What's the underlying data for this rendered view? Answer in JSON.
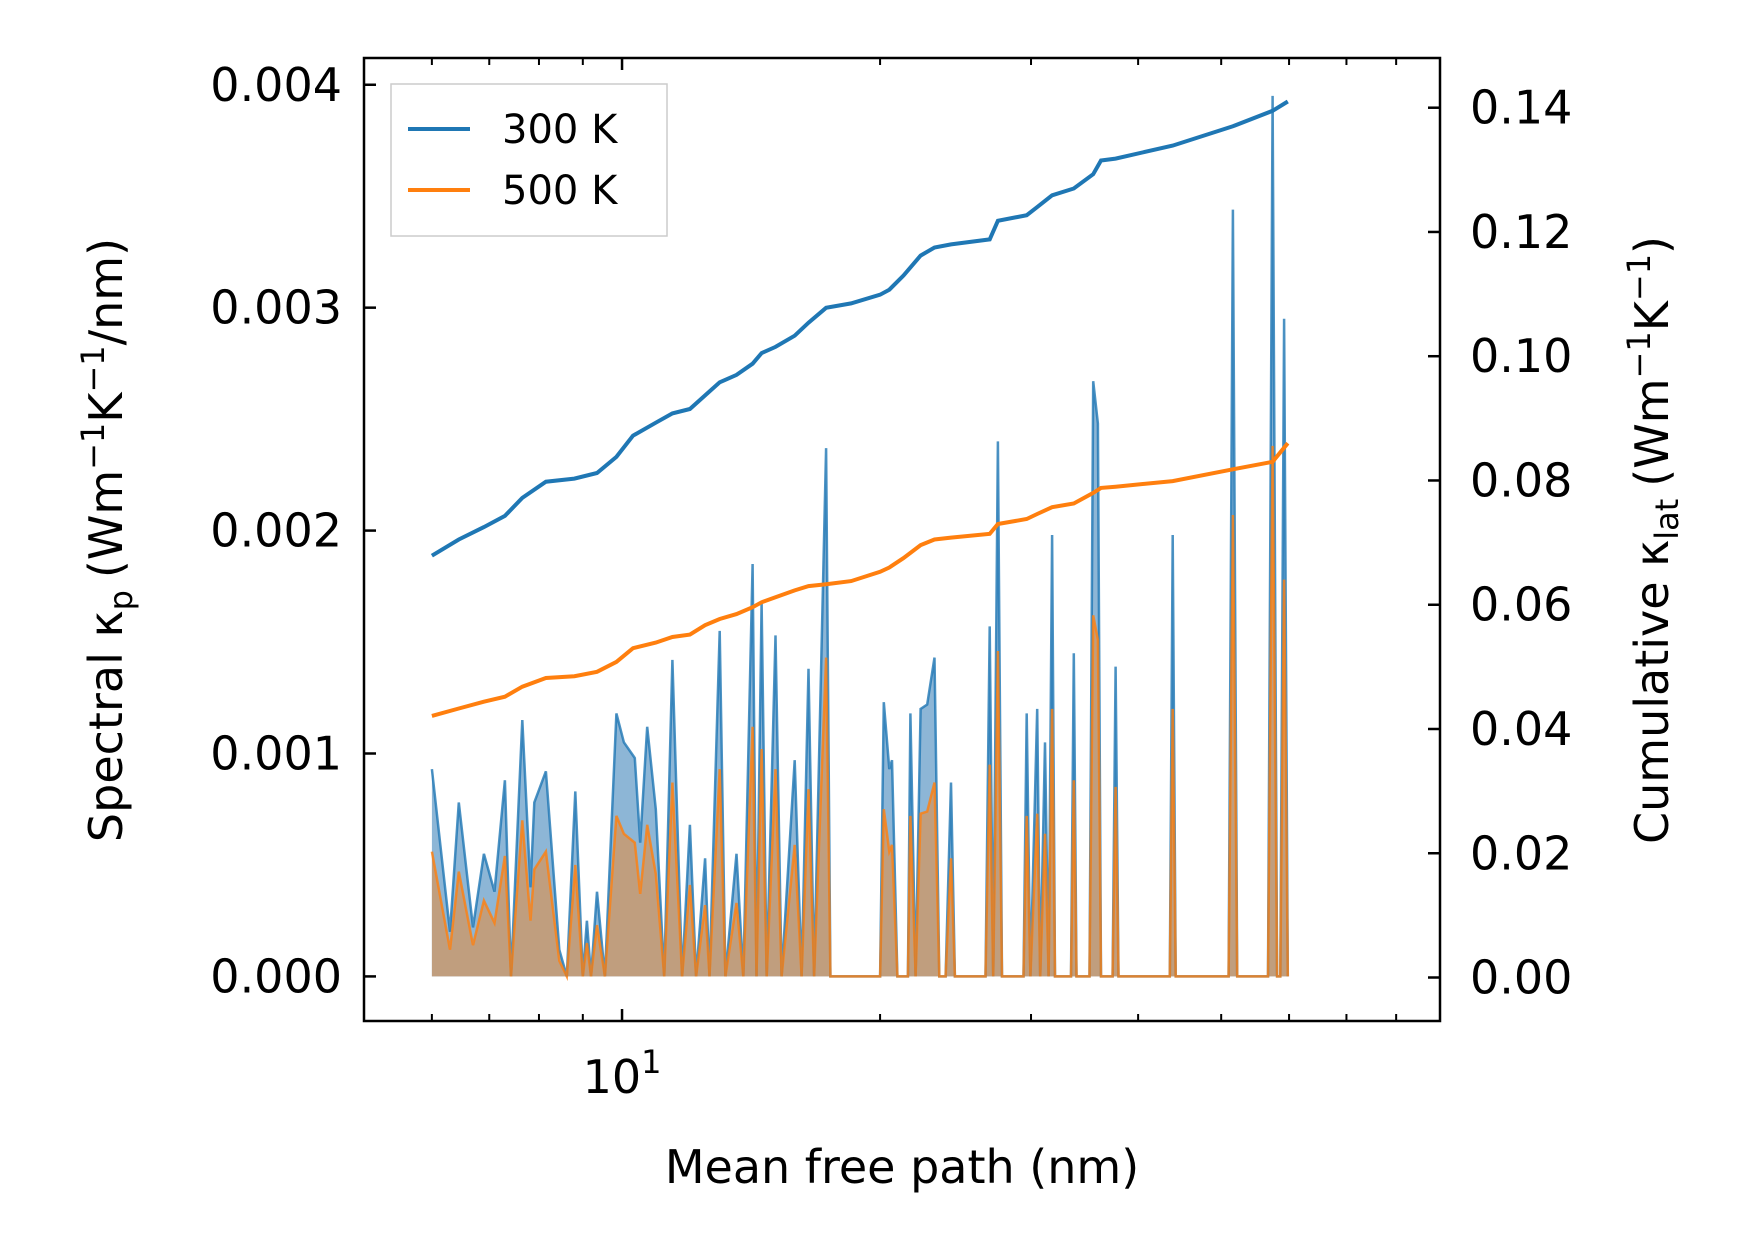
{
  "chart_data": {
    "type": "line",
    "x_scale": "log",
    "xlim": [
      5.0,
      90.0
    ],
    "xlabel": "Mean free path (nm)",
    "x_major_ticks": [
      {
        "value": 10,
        "base": "10",
        "exponent": "1"
      }
    ],
    "left_axis": {
      "label_prefix": "Spectral κ",
      "label_sub": "p",
      "label_units": [
        "(Wm",
        "−1",
        "K",
        "−1",
        "/nm)"
      ],
      "ylim": [
        -0.0002,
        0.00412
      ],
      "ticks": [
        0.0,
        0.001,
        0.002,
        0.003,
        0.004
      ],
      "tick_labels": [
        "0.000",
        "0.001",
        "0.002",
        "0.003",
        "0.004"
      ]
    },
    "right_axis": {
      "label_prefix": "Cumulative κ",
      "label_sub": "lat",
      "label_units": [
        "(Wm",
        "−1",
        "K",
        "−1",
        ")"
      ],
      "ylim": [
        -0.007,
        0.148
      ],
      "ticks": [
        0.0,
        0.02,
        0.04,
        0.06,
        0.08,
        0.1,
        0.12,
        0.14
      ],
      "tick_labels": [
        "0.00",
        "0.02",
        "0.04",
        "0.06",
        "0.08",
        "0.10",
        "0.12",
        "0.14"
      ]
    },
    "legend": {
      "placement": "top-left",
      "entries": [
        "300 K",
        "500 K"
      ]
    },
    "series": [
      {
        "name": "300 K",
        "color": "#1f77b4",
        "fill": "#79a9cf",
        "spectral": [
          [
            6.0,
            0.00093
          ],
          [
            6.3,
            0.0002
          ],
          [
            6.45,
            0.00078
          ],
          [
            6.7,
            0.00022
          ],
          [
            6.9,
            0.00055
          ],
          [
            7.1,
            0.00038
          ],
          [
            7.3,
            0.00088
          ],
          [
            7.42,
            0.0
          ],
          [
            7.5,
            0.0004
          ],
          [
            7.65,
            0.00115
          ],
          [
            7.82,
            0.0004
          ],
          [
            7.9,
            0.00078
          ],
          [
            8.15,
            0.00092
          ],
          [
            8.45,
            0.00012
          ],
          [
            8.62,
            0.0
          ],
          [
            8.82,
            0.00083
          ],
          [
            9.0,
            0.0
          ],
          [
            9.1,
            0.00025
          ],
          [
            9.2,
            0.0
          ],
          [
            9.35,
            0.00038
          ],
          [
            9.55,
            0.0
          ],
          [
            9.85,
            0.00118
          ],
          [
            10.05,
            0.00105
          ],
          [
            10.35,
            0.00098
          ],
          [
            10.5,
            0.0006
          ],
          [
            10.7,
            0.00112
          ],
          [
            10.95,
            0.00075
          ],
          [
            11.2,
            0.0
          ],
          [
            11.45,
            0.00142
          ],
          [
            11.75,
            0.0
          ],
          [
            12.0,
            0.00068
          ],
          [
            12.2,
            0.0
          ],
          [
            12.5,
            0.00053
          ],
          [
            12.65,
            0.0
          ],
          [
            13.0,
            0.00155
          ],
          [
            13.2,
            0.0
          ],
          [
            13.6,
            0.00055
          ],
          [
            13.85,
            0.0
          ],
          [
            14.2,
            0.00185
          ],
          [
            14.35,
            0.0
          ],
          [
            14.55,
            0.00168
          ],
          [
            14.75,
            0.0
          ],
          [
            15.1,
            0.00153
          ],
          [
            15.35,
            0.0
          ],
          [
            15.9,
            0.00097
          ],
          [
            16.2,
            0.0
          ],
          [
            16.5,
            0.00138
          ],
          [
            16.75,
            0.0
          ],
          [
            17.3,
            0.00237
          ],
          [
            17.5,
            0.0
          ],
          [
            20.0,
            0.0
          ],
          [
            20.2,
            0.00123
          ],
          [
            20.5,
            0.00093
          ],
          [
            20.65,
            0.00097
          ],
          [
            20.95,
            0.0
          ],
          [
            21.55,
            0.0
          ],
          [
            21.7,
            0.00118
          ],
          [
            22.0,
            0.0
          ],
          [
            22.3,
            0.0012
          ],
          [
            22.7,
            0.00122
          ],
          [
            23.15,
            0.00143
          ],
          [
            23.45,
            0.0
          ],
          [
            23.85,
            0.0
          ],
          [
            24.2,
            0.00087
          ],
          [
            24.45,
            0.0
          ],
          [
            26.55,
            0.0
          ],
          [
            26.85,
            0.00157
          ],
          [
            27.1,
            0.0
          ],
          [
            27.45,
            0.0024
          ],
          [
            27.75,
            0.0
          ],
          [
            29.4,
            0.0
          ],
          [
            29.65,
            0.00118
          ],
          [
            29.95,
            0.0
          ],
          [
            30.5,
            0.0012
          ],
          [
            30.75,
            0.0
          ],
          [
            31.15,
            0.00105
          ],
          [
            31.45,
            0.0
          ],
          [
            31.75,
            0.00198
          ],
          [
            32.0,
            0.0
          ],
          [
            33.4,
            0.0
          ],
          [
            33.65,
            0.00145
          ],
          [
            33.9,
            0.0
          ],
          [
            35.1,
            0.0
          ],
          [
            35.45,
            0.00267
          ],
          [
            35.9,
            0.00248
          ],
          [
            36.2,
            0.0
          ],
          [
            37.35,
            0.0
          ],
          [
            37.65,
            0.00139
          ],
          [
            37.95,
            0.0
          ],
          [
            43.55,
            0.0
          ],
          [
            43.9,
            0.00198
          ],
          [
            44.25,
            0.0
          ],
          [
            51.0,
            0.0
          ],
          [
            51.6,
            0.00344
          ],
          [
            52.2,
            0.0
          ],
          [
            56.7,
            0.0
          ],
          [
            57.4,
            0.00395
          ],
          [
            58.1,
            0.0
          ],
          [
            58.6,
            0.0
          ],
          [
            59.2,
            0.00295
          ],
          [
            59.8,
            0.0
          ]
        ],
        "cumulative": [
          [
            6.0,
            0.0679
          ],
          [
            6.45,
            0.0705
          ],
          [
            6.9,
            0.0725
          ],
          [
            7.3,
            0.0743
          ],
          [
            7.65,
            0.0772
          ],
          [
            8.15,
            0.0798
          ],
          [
            8.8,
            0.0803
          ],
          [
            9.35,
            0.0812
          ],
          [
            9.85,
            0.0838
          ],
          [
            10.3,
            0.0872
          ],
          [
            10.95,
            0.0893
          ],
          [
            11.45,
            0.0908
          ],
          [
            12.0,
            0.0915
          ],
          [
            12.5,
            0.0937
          ],
          [
            13.0,
            0.0958
          ],
          [
            13.6,
            0.097
          ],
          [
            14.2,
            0.0988
          ],
          [
            14.55,
            0.1005
          ],
          [
            15.1,
            0.1015
          ],
          [
            15.9,
            0.1033
          ],
          [
            16.5,
            0.1054
          ],
          [
            17.3,
            0.1078
          ],
          [
            18.5,
            0.1085
          ],
          [
            20.0,
            0.1099
          ],
          [
            20.5,
            0.1107
          ],
          [
            21.3,
            0.113
          ],
          [
            22.3,
            0.1162
          ],
          [
            23.15,
            0.1175
          ],
          [
            24.2,
            0.118
          ],
          [
            26.85,
            0.1188
          ],
          [
            27.45,
            0.1218
          ],
          [
            29.65,
            0.1227
          ],
          [
            30.5,
            0.124
          ],
          [
            31.75,
            0.1259
          ],
          [
            33.65,
            0.127
          ],
          [
            35.45,
            0.1293
          ],
          [
            36.2,
            0.1315
          ],
          [
            37.65,
            0.1318
          ],
          [
            43.9,
            0.1339
          ],
          [
            51.6,
            0.137
          ],
          [
            57.4,
            0.1395
          ],
          [
            59.8,
            0.141
          ]
        ]
      },
      {
        "name": "500 K",
        "color": "#ff7f0e",
        "fill": "#c99a6e",
        "spectral": [
          [
            6.0,
            0.00056
          ],
          [
            6.3,
            0.00012
          ],
          [
            6.45,
            0.00047
          ],
          [
            6.7,
            0.00014
          ],
          [
            6.9,
            0.00034
          ],
          [
            7.1,
            0.00024
          ],
          [
            7.3,
            0.00054
          ],
          [
            7.42,
            0.0
          ],
          [
            7.5,
            0.00025
          ],
          [
            7.65,
            0.0007
          ],
          [
            7.82,
            0.00025
          ],
          [
            7.9,
            0.00048
          ],
          [
            8.15,
            0.00056
          ],
          [
            8.45,
            7e-05
          ],
          [
            8.62,
            0.0
          ],
          [
            8.82,
            0.0005
          ],
          [
            9.0,
            0.0
          ],
          [
            9.1,
            0.00015
          ],
          [
            9.2,
            0.0
          ],
          [
            9.35,
            0.00023
          ],
          [
            9.55,
            0.0
          ],
          [
            9.85,
            0.00072
          ],
          [
            10.05,
            0.00064
          ],
          [
            10.35,
            0.0006
          ],
          [
            10.5,
            0.00037
          ],
          [
            10.7,
            0.00068
          ],
          [
            10.95,
            0.00046
          ],
          [
            11.2,
            0.0
          ],
          [
            11.45,
            0.00087
          ],
          [
            11.75,
            0.0
          ],
          [
            12.0,
            0.00041
          ],
          [
            12.2,
            0.0
          ],
          [
            12.5,
            0.00032
          ],
          [
            12.65,
            0.0
          ],
          [
            13.0,
            0.00093
          ],
          [
            13.2,
            0.0
          ],
          [
            13.6,
            0.00033
          ],
          [
            13.85,
            0.0
          ],
          [
            14.2,
            0.00112
          ],
          [
            14.35,
            0.0
          ],
          [
            14.55,
            0.00102
          ],
          [
            14.75,
            0.0
          ],
          [
            15.1,
            0.00093
          ],
          [
            15.35,
            0.0
          ],
          [
            15.9,
            0.00059
          ],
          [
            16.2,
            0.0
          ],
          [
            16.5,
            0.00084
          ],
          [
            16.75,
            0.0
          ],
          [
            17.3,
            0.00143
          ],
          [
            17.5,
            0.0
          ],
          [
            20.0,
            0.0
          ],
          [
            20.2,
            0.00075
          ],
          [
            20.5,
            0.00056
          ],
          [
            20.65,
            0.00059
          ],
          [
            20.95,
            0.0
          ],
          [
            21.55,
            0.0
          ],
          [
            21.7,
            0.00072
          ],
          [
            22.0,
            0.0
          ],
          [
            22.3,
            0.00073
          ],
          [
            22.7,
            0.00074
          ],
          [
            23.15,
            0.00087
          ],
          [
            23.45,
            0.0
          ],
          [
            23.85,
            0.0
          ],
          [
            24.2,
            0.00053
          ],
          [
            24.45,
            0.0
          ],
          [
            26.55,
            0.0
          ],
          [
            26.85,
            0.00095
          ],
          [
            27.1,
            0.0
          ],
          [
            27.45,
            0.00146
          ],
          [
            27.75,
            0.0
          ],
          [
            29.4,
            0.0
          ],
          [
            29.65,
            0.00072
          ],
          [
            29.95,
            0.0
          ],
          [
            30.5,
            0.00073
          ],
          [
            30.75,
            0.0
          ],
          [
            31.15,
            0.00064
          ],
          [
            31.45,
            0.0
          ],
          [
            31.75,
            0.0012
          ],
          [
            32.0,
            0.0
          ],
          [
            33.4,
            0.0
          ],
          [
            33.65,
            0.00088
          ],
          [
            33.9,
            0.0
          ],
          [
            35.1,
            0.0
          ],
          [
            35.45,
            0.00162
          ],
          [
            35.9,
            0.00151
          ],
          [
            36.2,
            0.0
          ],
          [
            37.35,
            0.0
          ],
          [
            37.65,
            0.00085
          ],
          [
            37.95,
            0.0
          ],
          [
            43.55,
            0.0
          ],
          [
            43.9,
            0.0012
          ],
          [
            44.25,
            0.0
          ],
          [
            51.0,
            0.0
          ],
          [
            51.6,
            0.00207
          ],
          [
            52.2,
            0.0
          ],
          [
            56.7,
            0.0
          ],
          [
            57.4,
            0.00238
          ],
          [
            58.1,
            0.0
          ],
          [
            58.6,
            0.0
          ],
          [
            59.2,
            0.00178
          ],
          [
            59.8,
            0.0
          ]
        ],
        "cumulative": [
          [
            6.0,
            0.0421
          ],
          [
            6.45,
            0.0433
          ],
          [
            6.9,
            0.0444
          ],
          [
            7.3,
            0.0452
          ],
          [
            7.65,
            0.0468
          ],
          [
            8.15,
            0.0482
          ],
          [
            8.8,
            0.0485
          ],
          [
            9.35,
            0.0492
          ],
          [
            9.85,
            0.0508
          ],
          [
            10.3,
            0.053
          ],
          [
            10.95,
            0.0539
          ],
          [
            11.45,
            0.0548
          ],
          [
            12.0,
            0.0552
          ],
          [
            12.5,
            0.0567
          ],
          [
            13.0,
            0.0577
          ],
          [
            13.6,
            0.0585
          ],
          [
            14.2,
            0.0596
          ],
          [
            14.55,
            0.0604
          ],
          [
            15.1,
            0.0612
          ],
          [
            15.9,
            0.0623
          ],
          [
            16.5,
            0.063
          ],
          [
            17.3,
            0.0633
          ],
          [
            18.5,
            0.0638
          ],
          [
            20.0,
            0.0653
          ],
          [
            20.5,
            0.066
          ],
          [
            21.3,
            0.0675
          ],
          [
            22.3,
            0.0696
          ],
          [
            23.15,
            0.0705
          ],
          [
            24.2,
            0.0708
          ],
          [
            26.85,
            0.0714
          ],
          [
            27.45,
            0.073
          ],
          [
            29.65,
            0.0738
          ],
          [
            30.5,
            0.0746
          ],
          [
            31.75,
            0.0757
          ],
          [
            33.65,
            0.0763
          ],
          [
            35.45,
            0.078
          ],
          [
            36.2,
            0.0788
          ],
          [
            37.65,
            0.079
          ],
          [
            43.9,
            0.0799
          ],
          [
            51.6,
            0.0818
          ],
          [
            57.4,
            0.083
          ],
          [
            59.8,
            0.086
          ]
        ]
      }
    ]
  }
}
